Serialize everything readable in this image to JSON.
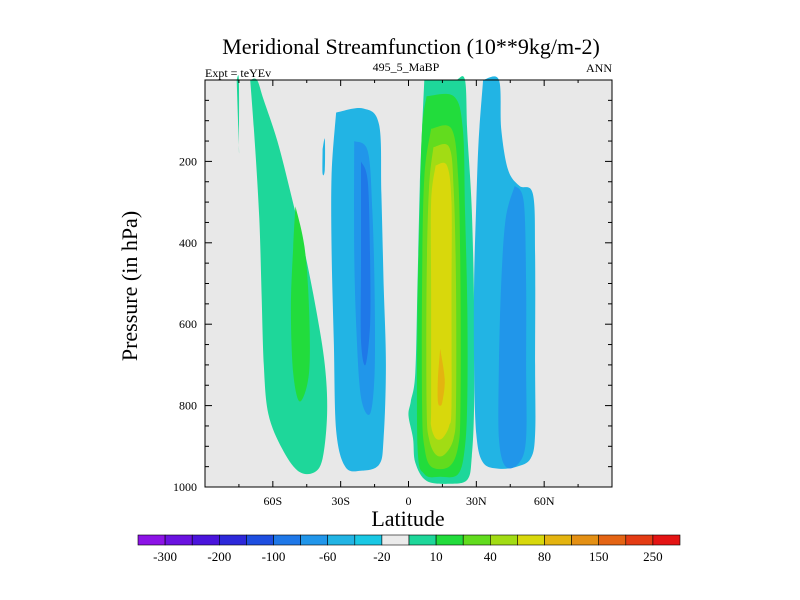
{
  "chart_data": {
    "type": "contour",
    "title": "Meridional Streamfunction (10**9kg/m-2)",
    "left_subtitle": "Expt = teYEv",
    "center_subtitle": "495_5_MaBP",
    "right_subtitle": "ANN",
    "xlabel": "Latitude",
    "ylabel": "Pressure (in hPa)",
    "xlim": [
      -90,
      90
    ],
    "ylim": [
      1000,
      0
    ],
    "x_ticks": [
      {
        "value": -60,
        "label": "60S"
      },
      {
        "value": -30,
        "label": "30S"
      },
      {
        "value": 0,
        "label": "0"
      },
      {
        "value": 30,
        "label": "30N"
      },
      {
        "value": 60,
        "label": "60N"
      }
    ],
    "y_ticks": [
      {
        "value": 200,
        "label": "200"
      },
      {
        "value": 400,
        "label": "400"
      },
      {
        "value": 600,
        "label": "600"
      },
      {
        "value": 800,
        "label": "800"
      },
      {
        "value": 1000,
        "label": "1000"
      }
    ],
    "colorbar": {
      "labels": [
        "-300",
        "-200",
        "-100",
        "-60",
        "-20",
        "10",
        "40",
        "80",
        "150",
        "250"
      ],
      "colors": [
        "#8c13e6",
        "#6a12e0",
        "#4a14dc",
        "#2d28da",
        "#1e4ee0",
        "#1f78e8",
        "#2196ea",
        "#22b4e4",
        "#19c8e4",
        "#ebebeb",
        "#1ed79a",
        "#22dc3c",
        "#62dc1e",
        "#a2dc14",
        "#d8d80c",
        "#e4b410",
        "#e49014",
        "#e46414",
        "#e43c14",
        "#e41414"
      ]
    },
    "cells": [
      {
        "name": "sh-polar-cell",
        "level": "10",
        "color": "#1ed79a",
        "outline": [
          [
            -70,
            0
          ],
          [
            -67,
            0
          ],
          [
            -64,
            50
          ],
          [
            -58,
            150
          ],
          [
            -52,
            280
          ],
          [
            -46,
            420
          ],
          [
            -41,
            560
          ],
          [
            -37,
            700
          ],
          [
            -36,
            820
          ],
          [
            -38,
            930
          ],
          [
            -42,
            965
          ],
          [
            -49,
            960
          ],
          [
            -56,
            905
          ],
          [
            -62,
            820
          ],
          [
            -64,
            700
          ],
          [
            -65,
            520
          ],
          [
            -66,
            340
          ],
          [
            -68,
            150
          ],
          [
            -70,
            0
          ]
        ]
      },
      {
        "name": "sh-polar-core",
        "level": "40",
        "color": "#22dc3c",
        "outline": [
          [
            -50,
            310
          ],
          [
            -46,
            410
          ],
          [
            -44,
            560
          ],
          [
            -44,
            720
          ],
          [
            -48,
            790
          ],
          [
            -51,
            720
          ],
          [
            -52,
            560
          ],
          [
            -51,
            410
          ],
          [
            -50,
            310
          ]
        ]
      },
      {
        "name": "sh-polar-strip",
        "level": "10",
        "color": "#1ed79a",
        "outline": [
          [
            -76,
            0
          ],
          [
            -75,
            0
          ],
          [
            -75,
            160
          ],
          [
            -75,
            160
          ],
          [
            -76,
            0
          ]
        ]
      },
      {
        "name": "sh-ferrel-cell",
        "level": "-20",
        "color": "#22b4e4",
        "outline": [
          [
            -32,
            80
          ],
          [
            -20,
            70
          ],
          [
            -13,
            110
          ],
          [
            -12,
            280
          ],
          [
            -11,
            500
          ],
          [
            -10,
            700
          ],
          [
            -11,
            880
          ],
          [
            -13,
            945
          ],
          [
            -21,
            960
          ],
          [
            -28,
            950
          ],
          [
            -32,
            860
          ],
          [
            -33,
            650
          ],
          [
            -34,
            420
          ],
          [
            -34,
            230
          ],
          [
            -32,
            80
          ]
        ]
      },
      {
        "name": "sh-ferrel-mid",
        "level": "-60",
        "color": "#2196ea",
        "outline": [
          [
            -24,
            150
          ],
          [
            -18,
            175
          ],
          [
            -16,
            320
          ],
          [
            -15,
            520
          ],
          [
            -15,
            720
          ],
          [
            -17,
            820
          ],
          [
            -21,
            780
          ],
          [
            -23,
            620
          ],
          [
            -24,
            420
          ],
          [
            -24,
            150
          ]
        ]
      },
      {
        "name": "sh-ferrel-core",
        "level": "-100",
        "color": "#1f78e8",
        "outline": [
          [
            -21,
            200
          ],
          [
            -18,
            250
          ],
          [
            -17,
            440
          ],
          [
            -17,
            600
          ],
          [
            -19,
            700
          ],
          [
            -21,
            640
          ],
          [
            -21,
            440
          ],
          [
            -21,
            200
          ]
        ]
      },
      {
        "name": "sh-strip",
        "level": "-20",
        "color": "#22b4e4",
        "outline": [
          [
            -38,
            170
          ],
          [
            -37,
            145
          ],
          [
            -37,
            220
          ],
          [
            -38,
            230
          ],
          [
            -38,
            170
          ]
        ]
      },
      {
        "name": "hadley-cell",
        "level": "10",
        "color": "#1ed79a",
        "outline": [
          [
            7,
            0
          ],
          [
            17,
            0
          ],
          [
            21,
            0
          ],
          [
            25,
            0
          ],
          [
            26,
            130
          ],
          [
            28,
            320
          ],
          [
            29,
            560
          ],
          [
            29,
            800
          ],
          [
            28,
            925
          ],
          [
            26,
            982
          ],
          [
            18,
            992
          ],
          [
            8,
            985
          ],
          [
            3,
            940
          ],
          [
            2,
            880
          ],
          [
            0,
            825
          ],
          [
            1,
            790
          ],
          [
            3,
            720
          ],
          [
            4,
            500
          ],
          [
            5,
            260
          ],
          [
            6,
            120
          ],
          [
            7,
            0
          ]
        ]
      },
      {
        "name": "hadley-l40",
        "level": "40",
        "color": "#22dc3c",
        "outline": [
          [
            8,
            40
          ],
          [
            20,
            40
          ],
          [
            24,
            120
          ],
          [
            25,
            320
          ],
          [
            26,
            560
          ],
          [
            26,
            780
          ],
          [
            25,
            900
          ],
          [
            22,
            968
          ],
          [
            14,
            975
          ],
          [
            7,
            968
          ],
          [
            4,
            900
          ],
          [
            4,
            560
          ],
          [
            5,
            320
          ],
          [
            6,
            120
          ],
          [
            8,
            40
          ]
        ]
      },
      {
        "name": "hadley-l80",
        "level": "80",
        "color": "#62dc1e",
        "outline": [
          [
            10,
            120
          ],
          [
            19,
            120
          ],
          [
            22,
            240
          ],
          [
            23,
            500
          ],
          [
            23,
            800
          ],
          [
            22,
            900
          ],
          [
            18,
            950
          ],
          [
            10,
            950
          ],
          [
            7,
            900
          ],
          [
            6,
            800
          ],
          [
            6,
            500
          ],
          [
            7,
            240
          ],
          [
            10,
            120
          ]
        ]
      },
      {
        "name": "hadley-l100",
        "level": "100",
        "color": "#a2dc14",
        "outline": [
          [
            11,
            165
          ],
          [
            18,
            165
          ],
          [
            20,
            270
          ],
          [
            21,
            500
          ],
          [
            21,
            800
          ],
          [
            20,
            880
          ],
          [
            16,
            920
          ],
          [
            12,
            920
          ],
          [
            9,
            880
          ],
          [
            8,
            800
          ],
          [
            8,
            500
          ],
          [
            9,
            270
          ],
          [
            11,
            165
          ]
        ]
      },
      {
        "name": "hadley-l150",
        "level": "150",
        "color": "#d8d80c",
        "outline": [
          [
            12,
            210
          ],
          [
            17,
            210
          ],
          [
            19,
            300
          ],
          [
            19,
            520
          ],
          [
            19,
            800
          ],
          [
            18,
            850
          ],
          [
            15,
            880
          ],
          [
            12,
            880
          ],
          [
            10,
            850
          ],
          [
            10,
            800
          ],
          [
            10,
            520
          ],
          [
            10,
            300
          ],
          [
            12,
            210
          ]
        ]
      },
      {
        "name": "hadley-core",
        "level": "200",
        "color": "#e4b410",
        "outline": [
          [
            14,
            660
          ],
          [
            16,
            735
          ],
          [
            15,
            790
          ],
          [
            14,
            800
          ],
          [
            13,
            790
          ],
          [
            13,
            735
          ],
          [
            14,
            660
          ]
        ]
      },
      {
        "name": "nh-ferrel-cell",
        "level": "-20",
        "color": "#22b4e4",
        "outline": [
          [
            33,
            0
          ],
          [
            40,
            0
          ],
          [
            41,
            120
          ],
          [
            44,
            220
          ],
          [
            49,
            260
          ],
          [
            55,
            280
          ],
          [
            56,
            430
          ],
          [
            56,
            700
          ],
          [
            56,
            870
          ],
          [
            54,
            930
          ],
          [
            48,
            950
          ],
          [
            40,
            955
          ],
          [
            33,
            940
          ],
          [
            30,
            870
          ],
          [
            29,
            700
          ],
          [
            29,
            500
          ],
          [
            30,
            300
          ],
          [
            31,
            150
          ],
          [
            33,
            0
          ]
        ]
      },
      {
        "name": "nh-ferrel-mid",
        "level": "-60",
        "color": "#2196ea",
        "outline": [
          [
            47,
            260
          ],
          [
            51,
            300
          ],
          [
            52,
            500
          ],
          [
            52,
            700
          ],
          [
            52,
            880
          ],
          [
            49,
            940
          ],
          [
            43,
            950
          ],
          [
            40,
            880
          ],
          [
            40,
            700
          ],
          [
            41,
            500
          ],
          [
            43,
            340
          ],
          [
            47,
            260
          ]
        ]
      }
    ]
  }
}
